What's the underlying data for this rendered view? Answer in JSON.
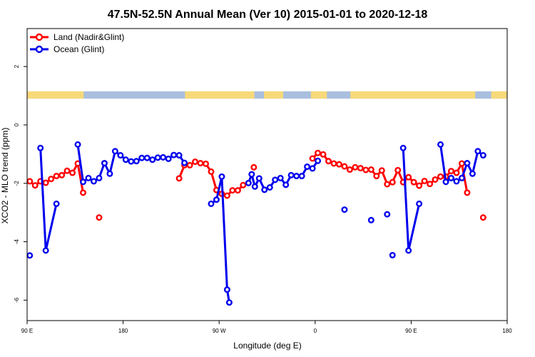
{
  "chart_data": {
    "type": "line",
    "title": "47.5N-52.5N Annual Mean (Ver 10)   2015-01-01 to 2020-12-18",
    "xlabel": "Longitude (deg E)",
    "ylabel": "XCO2 - MLO trend (ppm)",
    "x_unit": "degrees east (unwrapped: 90E = 90 ... 180 ... 90W = 270 ... 0 = 360 ... 90E = 450 ... 180 = 540)",
    "xlim": [
      90,
      540
    ],
    "ylim": [
      -6.7,
      3.3
    ],
    "x_ticks": [
      {
        "value": 90,
        "label": "90 E"
      },
      {
        "value": 180,
        "label": "180"
      },
      {
        "value": 270,
        "label": "90 W"
      },
      {
        "value": 360,
        "label": "0"
      },
      {
        "value": 450,
        "label": "90 E"
      },
      {
        "value": 540,
        "label": "180"
      }
    ],
    "y_ticks": [
      {
        "value": 2,
        "label": "2"
      },
      {
        "value": 0,
        "label": "0"
      },
      {
        "value": -2,
        "label": "-2"
      },
      {
        "value": -4,
        "label": "-4"
      },
      {
        "value": -6,
        "label": "-6"
      }
    ],
    "legend_position": "top-left",
    "grid": false,
    "land_ocean_strip": {
      "y_range": [
        0.9,
        1.15
      ],
      "land_color": "#f7d97a",
      "ocean_color": "#a9bfde",
      "land_segments": [
        [
          90,
          143
        ],
        [
          238,
          303
        ],
        [
          312,
          330
        ],
        [
          356,
          371
        ],
        [
          393,
          510
        ],
        [
          525,
          540
        ]
      ]
    },
    "series": [
      {
        "name": "Land (Nadir&Glint)",
        "color": "#ff0000",
        "segments": [
          [
            [
              92.5,
              -1.93
            ],
            [
              97.5,
              -2.07
            ],
            [
              102.5,
              -1.93
            ],
            [
              107.5,
              -1.98
            ],
            [
              112.5,
              -1.85
            ],
            [
              117.5,
              -1.75
            ],
            [
              122.5,
              -1.72
            ],
            [
              127.5,
              -1.57
            ],
            [
              132.5,
              -1.64
            ],
            [
              137.5,
              -1.32
            ],
            [
              142.5,
              -2.32
            ]
          ],
          [
            [
              157.5,
              -3.17
            ]
          ],
          [
            [
              232.5,
              -1.83
            ],
            [
              237.5,
              -1.38
            ],
            [
              242.5,
              -1.38
            ],
            [
              247.5,
              -1.26
            ],
            [
              252.5,
              -1.31
            ],
            [
              257.5,
              -1.33
            ],
            [
              262.5,
              -1.6
            ],
            [
              267.5,
              -2.23
            ],
            [
              272.5,
              -2.36
            ],
            [
              277.5,
              -2.42
            ],
            [
              282.5,
              -2.24
            ],
            [
              287.5,
              -2.24
            ],
            [
              292.5,
              -2.06
            ]
          ],
          [
            [
              302.5,
              -1.45
            ]
          ],
          [
            [
              357.5,
              -1.15
            ],
            [
              362.5,
              -0.96
            ],
            [
              367.5,
              -1.01
            ],
            [
              372.5,
              -1.24
            ],
            [
              377.5,
              -1.32
            ],
            [
              382.5,
              -1.35
            ],
            [
              387.5,
              -1.42
            ],
            [
              392.5,
              -1.53
            ],
            [
              397.5,
              -1.45
            ],
            [
              402.5,
              -1.48
            ],
            [
              407.5,
              -1.54
            ],
            [
              412.5,
              -1.53
            ],
            [
              417.5,
              -1.75
            ],
            [
              422.5,
              -1.56
            ],
            [
              427.5,
              -2.03
            ],
            [
              432.5,
              -1.96
            ],
            [
              437.5,
              -1.55
            ],
            [
              442.5,
              -1.96
            ],
            [
              447.5,
              -1.79
            ],
            [
              452.5,
              -1.96
            ],
            [
              457.5,
              -2.08
            ],
            [
              462.5,
              -1.92
            ],
            [
              467.5,
              -2.02
            ],
            [
              472.5,
              -1.87
            ],
            [
              477.5,
              -1.77
            ],
            [
              482.5,
              -1.77
            ],
            [
              487.5,
              -1.58
            ],
            [
              492.5,
              -1.64
            ],
            [
              497.5,
              -1.32
            ],
            [
              502.5,
              -2.32
            ]
          ],
          [
            [
              517.5,
              -3.17
            ]
          ]
        ]
      },
      {
        "name": "Ocean (Glint)",
        "color": "#0000ee",
        "segments": [
          [
            [
              92.5,
              -4.47
            ]
          ],
          [
            [
              102.5,
              -0.79
            ],
            [
              107.5,
              -4.3
            ],
            [
              117.5,
              -2.7
            ]
          ],
          [
            [
              137.5,
              -0.67
            ],
            [
              142.5,
              -1.95
            ],
            [
              147.5,
              -1.82
            ],
            [
              152.5,
              -1.93
            ],
            [
              157.5,
              -1.82
            ],
            [
              162.5,
              -1.31
            ],
            [
              167.5,
              -1.67
            ],
            [
              172.5,
              -0.9
            ],
            [
              177.5,
              -1.04
            ],
            [
              182.5,
              -1.19
            ],
            [
              187.5,
              -1.25
            ],
            [
              192.5,
              -1.24
            ],
            [
              197.5,
              -1.13
            ],
            [
              202.5,
              -1.13
            ],
            [
              207.5,
              -1.19
            ],
            [
              212.5,
              -1.12
            ],
            [
              217.5,
              -1.11
            ],
            [
              222.5,
              -1.16
            ],
            [
              227.5,
              -1.03
            ],
            [
              232.5,
              -1.04
            ],
            [
              237.5,
              -1.3
            ]
          ],
          [
            [
              262.5,
              -2.7
            ],
            [
              267.5,
              -2.56
            ],
            [
              272.5,
              -1.77
            ],
            [
              277.5,
              -5.64
            ],
            [
              279.5,
              -6.08
            ]
          ],
          [
            [
              297.5,
              -1.99
            ],
            [
              300.5,
              -1.69
            ],
            [
              303.5,
              -2.11
            ],
            [
              307.5,
              -1.83
            ],
            [
              312.5,
              -2.22
            ],
            [
              317.5,
              -2.14
            ],
            [
              322.5,
              -1.88
            ],
            [
              327.5,
              -1.82
            ],
            [
              332.5,
              -2.05
            ],
            [
              337.5,
              -1.72
            ],
            [
              342.5,
              -1.75
            ],
            [
              347.5,
              -1.75
            ],
            [
              352.5,
              -1.43
            ],
            [
              357.5,
              -1.49
            ],
            [
              362.5,
              -1.23
            ]
          ],
          [
            [
              387.5,
              -2.9
            ]
          ],
          [
            [
              412.5,
              -3.26
            ]
          ],
          [
            [
              427.5,
              -3.06
            ]
          ],
          [
            [
              432.5,
              -4.46
            ]
          ],
          [
            [
              442.5,
              -0.79
            ],
            [
              447.5,
              -4.3
            ],
            [
              457.5,
              -2.7
            ]
          ],
          [
            [
              477.5,
              -0.67
            ],
            [
              482.5,
              -1.95
            ],
            [
              487.5,
              -1.82
            ],
            [
              492.5,
              -1.93
            ],
            [
              497.5,
              -1.82
            ],
            [
              502.5,
              -1.31
            ],
            [
              507.5,
              -1.67
            ],
            [
              512.5,
              -0.9
            ],
            [
              517.5,
              -1.04
            ]
          ]
        ]
      }
    ]
  }
}
